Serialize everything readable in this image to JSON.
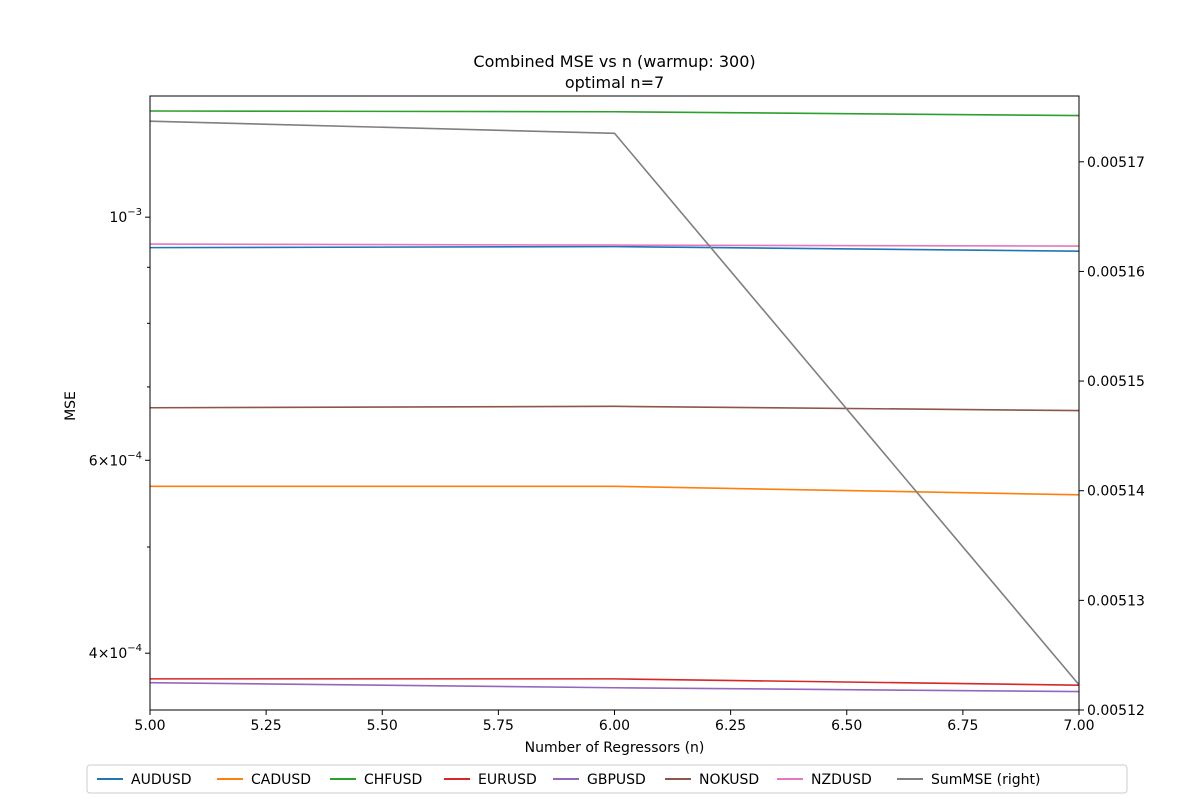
{
  "chart_data": {
    "type": "line",
    "title": "Combined MSE vs n (warmup: 300)",
    "subtitle": "optimal n=7",
    "xlabel": "Number of Regressors (n)",
    "ylabel": "MSE",
    "xlim": [
      5.0,
      7.0
    ],
    "x": [
      5,
      6,
      7
    ],
    "x_ticks": [
      5.0,
      5.25,
      5.5,
      5.75,
      6.0,
      6.25,
      6.5,
      6.75,
      7.0
    ],
    "x_tick_labels": [
      "5.00",
      "5.25",
      "5.50",
      "5.75",
      "6.00",
      "6.25",
      "6.50",
      "6.75",
      "7.00"
    ],
    "y_scale": "log",
    "ylim": [
      0.000355,
      0.00129
    ],
    "y_major_ticks": [
      0.0004,
      0.0006,
      0.001
    ],
    "y_minor_ticks": [
      0.0005,
      0.0007,
      0.0008,
      0.0009
    ],
    "y_tick_labels": [
      {
        "base": "4",
        "times": "×",
        "exp_base": "10",
        "exp": "−4"
      },
      {
        "base": "6",
        "times": "×",
        "exp_base": "10",
        "exp": "−4"
      },
      {
        "base": "",
        "times": "",
        "exp_base": "10",
        "exp": "−3"
      }
    ],
    "y2lim": [
      0.00512,
      0.005176
    ],
    "y2_ticks": [
      0.00512,
      0.00513,
      0.00514,
      0.00515,
      0.00516,
      0.00517
    ],
    "y2_tick_labels": [
      "0.00512",
      "0.00513",
      "0.00514",
      "0.00515",
      "0.00516",
      "0.00517"
    ],
    "series": [
      {
        "name": "AUDUSD",
        "color": "#1f77b4",
        "axis": "left",
        "values": [
          0.000938,
          0.00094,
          0.000931
        ]
      },
      {
        "name": "CADUSD",
        "color": "#ff7f0e",
        "axis": "left",
        "values": [
          0.000568,
          0.000568,
          0.000558
        ]
      },
      {
        "name": "CHFUSD",
        "color": "#2ca02c",
        "axis": "left",
        "values": [
          0.00125,
          0.001248,
          0.001238
        ]
      },
      {
        "name": "EURUSD",
        "color": "#d62728",
        "axis": "left",
        "values": [
          0.000379,
          0.000379,
          0.000374
        ]
      },
      {
        "name": "GBPUSD",
        "color": "#9467bd",
        "axis": "left",
        "values": [
          0.000376,
          0.000372,
          0.000369
        ]
      },
      {
        "name": "NOKUSD",
        "color": "#8c564b",
        "axis": "left",
        "values": [
          0.00067,
          0.000672,
          0.000666
        ]
      },
      {
        "name": "NZDUSD",
        "color": "#e377c2",
        "axis": "left",
        "values": [
          0.000945,
          0.000943,
          0.000941
        ]
      },
      {
        "name": "SumMSE (right)",
        "color": "#7f7f7f",
        "axis": "right",
        "values": [
          0.0051737,
          0.0051726,
          0.0051223
        ]
      }
    ],
    "legend_position": "bottom-center",
    "grid": false
  }
}
